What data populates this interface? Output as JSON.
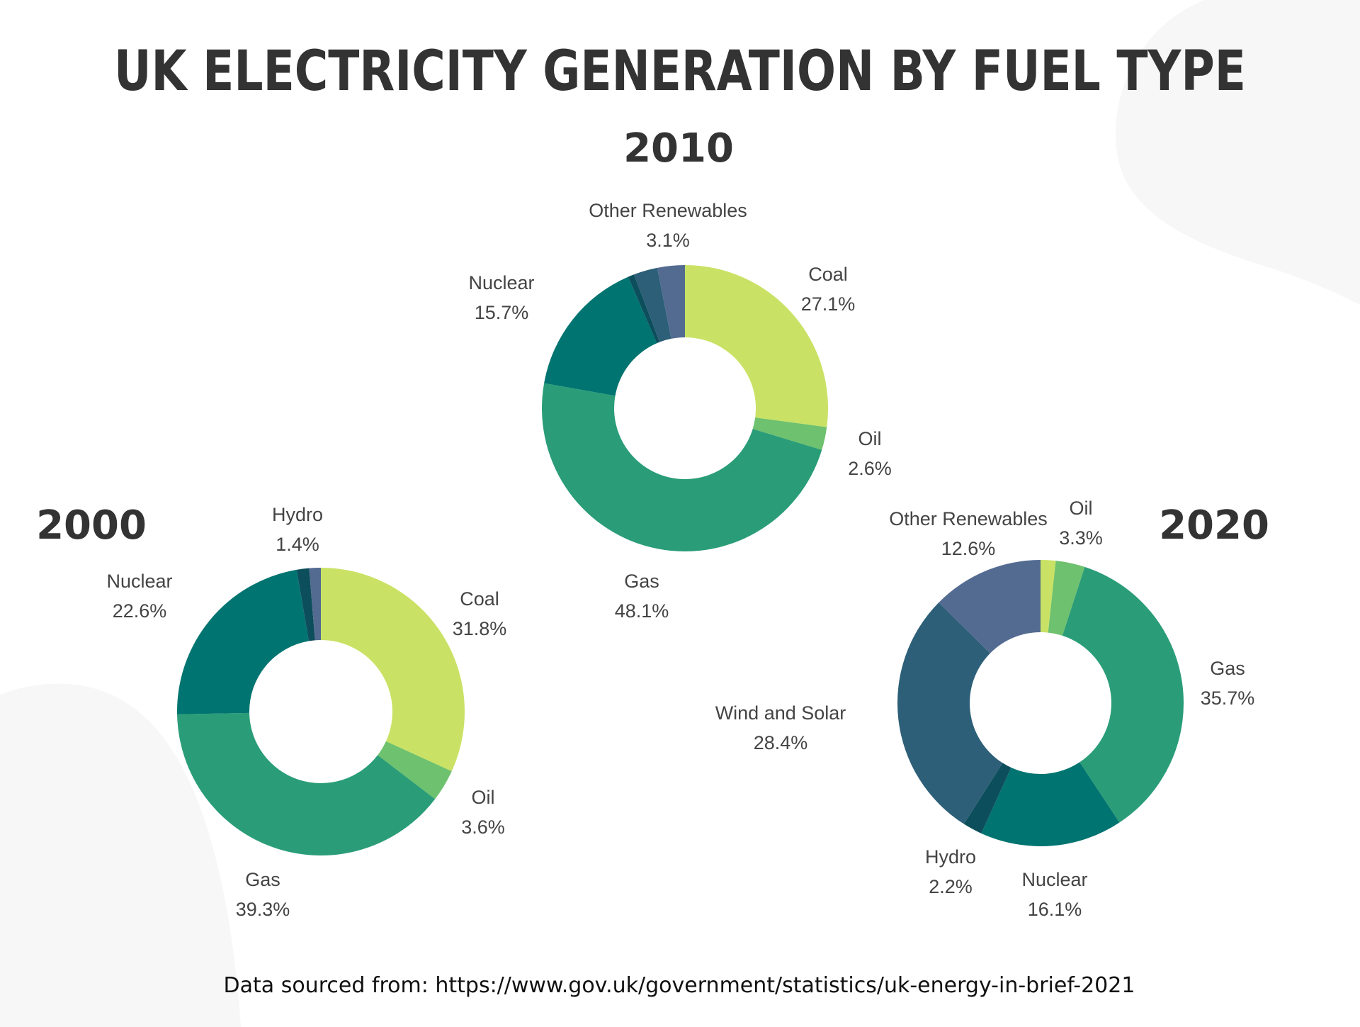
{
  "chart_data": [
    {
      "type": "pie",
      "donut": true,
      "title": "2000",
      "slices": [
        {
          "label": "Coal",
          "value": 31.8,
          "value_label": "31.8%",
          "color": "#c9e265"
        },
        {
          "label": "Oil",
          "value": 3.6,
          "value_label": "3.6%",
          "color": "#6ec16e"
        },
        {
          "label": "Gas",
          "value": 39.3,
          "value_label": "39.3%",
          "color": "#2a9d78"
        },
        {
          "label": "Nuclear",
          "value": 22.6,
          "value_label": "22.6%",
          "color": "#007470"
        },
        {
          "label": "Hydro",
          "value": 1.4,
          "value_label": "1.4%",
          "color": "#0d4e5c"
        },
        {
          "label": "",
          "value": 1.3,
          "value_label": "",
          "color": "#536b90"
        }
      ]
    },
    {
      "type": "pie",
      "donut": true,
      "title": "2010",
      "slices": [
        {
          "label": "Coal",
          "value": 27.1,
          "value_label": "27.1%",
          "color": "#c9e265"
        },
        {
          "label": "Oil",
          "value": 2.6,
          "value_label": "2.6%",
          "color": "#6ec16e"
        },
        {
          "label": "Gas",
          "value": 48.1,
          "value_label": "48.1%",
          "color": "#2a9d78"
        },
        {
          "label": "Nuclear",
          "value": 15.7,
          "value_label": "15.7%",
          "color": "#007470"
        },
        {
          "label": "",
          "value": 0.7,
          "value_label": "",
          "color": "#0d4e5c"
        },
        {
          "label": "",
          "value": 2.7,
          "value_label": "",
          "color": "#2d5f78"
        },
        {
          "label": "Other Renewables",
          "value": 3.1,
          "value_label": "3.1%",
          "color": "#536b90"
        }
      ]
    },
    {
      "type": "pie",
      "donut": true,
      "title": "2020",
      "slices": [
        {
          "label": "",
          "value": 1.7,
          "value_label": "",
          "color": "#c9e265"
        },
        {
          "label": "Oil",
          "value": 3.3,
          "value_label": "3.3%",
          "color": "#6ec16e"
        },
        {
          "label": "Gas",
          "value": 35.7,
          "value_label": "35.7%",
          "color": "#2a9d78"
        },
        {
          "label": "Nuclear",
          "value": 16.1,
          "value_label": "16.1%",
          "color": "#007470"
        },
        {
          "label": "Hydro",
          "value": 2.2,
          "value_label": "2.2%",
          "color": "#0d4e5c"
        },
        {
          "label": "Wind and Solar",
          "value": 28.4,
          "value_label": "28.4%",
          "color": "#2d5f78"
        },
        {
          "label": "Other Renewables",
          "value": 12.6,
          "value_label": "12.6%",
          "color": "#536b90"
        }
      ]
    }
  ],
  "header": {
    "title": "UK ELECTRICITY GENERATION BY FUEL TYPE"
  },
  "footer": {
    "source": "Data sourced from: https://www.gov.uk/government/statistics/uk-energy-in-brief-2021"
  },
  "colors": {
    "background": "#ffffff",
    "blob": "#f7f7f7",
    "text": "#333333"
  }
}
